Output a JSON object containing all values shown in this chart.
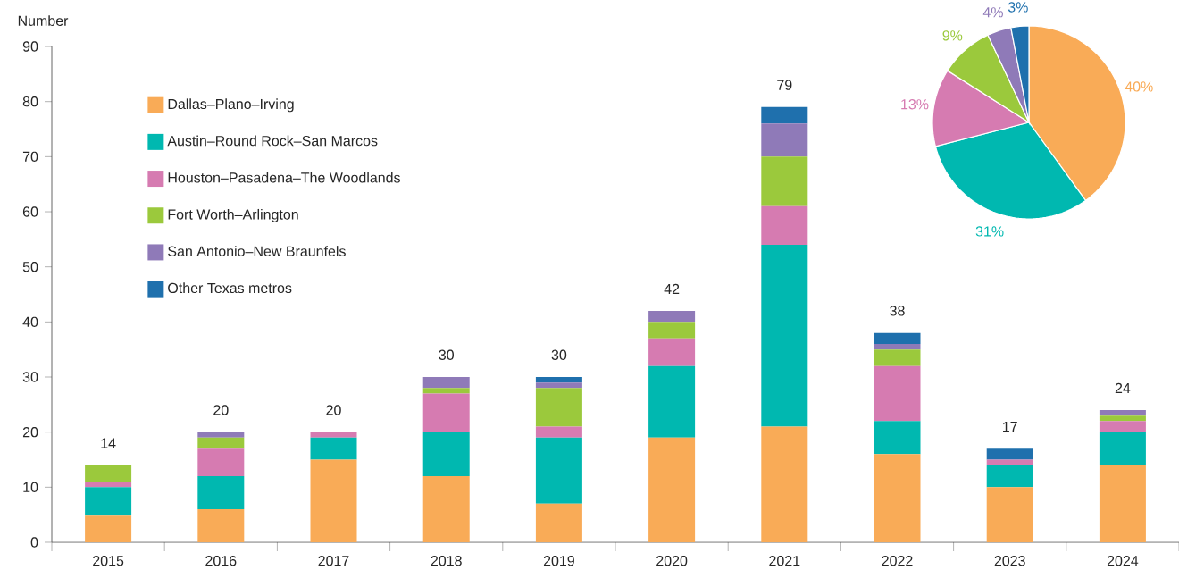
{
  "chart_data": [
    {
      "type": "bar",
      "ylabel": "Number",
      "categories": [
        "2015",
        "2016",
        "2017",
        "2018",
        "2019",
        "2020",
        "2021",
        "2022",
        "2023",
        "2024"
      ],
      "stacked": true,
      "legend": "top left",
      "ylim": [
        0,
        90
      ],
      "yticks": [
        0,
        10,
        20,
        30,
        40,
        50,
        60,
        70,
        80,
        90
      ],
      "totals": [
        "14",
        "20",
        "20",
        "30",
        "30",
        "42",
        "79",
        "38",
        "17",
        "24"
      ],
      "series": [
        {
          "name": "Dallas–Plano–Irving",
          "color": "#f9ab57",
          "values": [
            5,
            6,
            15,
            12,
            7,
            19,
            21,
            16,
            10,
            14
          ]
        },
        {
          "name": "Austin–Round Rock–San Marcos",
          "color": "#00b8b0",
          "values": [
            5,
            6,
            4,
            8,
            12,
            13,
            33,
            6,
            4,
            6
          ]
        },
        {
          "name": "Houston–Pasadena–The Woodlands",
          "color": "#d67bb1",
          "values": [
            1,
            5,
            1,
            7,
            2,
            5,
            7,
            10,
            1,
            2
          ]
        },
        {
          "name": "Fort Worth–Arlington",
          "color": "#9bc93c",
          "values": [
            3,
            2,
            0,
            1,
            7,
            3,
            9,
            3,
            0,
            1
          ]
        },
        {
          "name": "San Antonio–New Braunfels",
          "color": "#8f7ab8",
          "values": [
            0,
            1,
            0,
            2,
            1,
            2,
            6,
            1,
            0,
            1
          ]
        },
        {
          "name": "Other Texas metros",
          "color": "#1f70ad",
          "values": [
            0,
            0,
            0,
            0,
            1,
            0,
            3,
            2,
            2,
            0
          ]
        }
      ]
    },
    {
      "type": "pie",
      "categories": [
        null,
        null,
        null,
        null,
        null,
        null
      ],
      "values": [
        40,
        31,
        13,
        9,
        4,
        3
      ],
      "colors": [
        "#f9ab57",
        "#00b8b0",
        "#d67bb1",
        "#9bc93c",
        "#8f7ab8",
        "#1f70ad"
      ],
      "value_labels": [
        "40%",
        "31%",
        "13%",
        "9%",
        "4%",
        "3%"
      ]
    }
  ]
}
